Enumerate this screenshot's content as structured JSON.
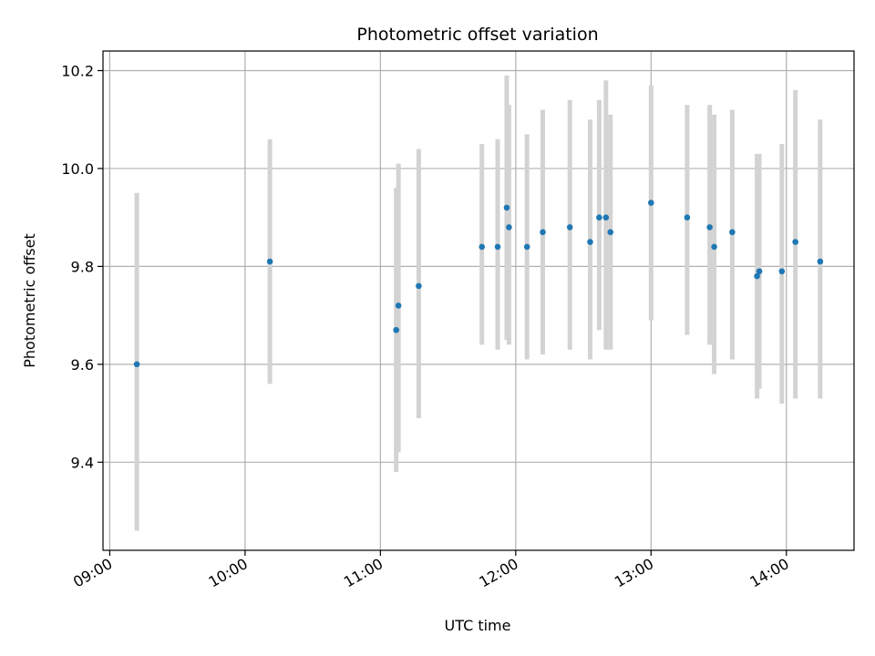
{
  "chart_data": {
    "type": "scatter",
    "title": "Photometric offset variation",
    "xlabel": "UTC time",
    "ylabel": "Photometric offset",
    "x_unit": "hours UTC",
    "xlim": [
      "08:57",
      "14:30"
    ],
    "ylim": [
      9.22,
      10.24
    ],
    "x_ticks": [
      "09:00",
      "10:00",
      "11:00",
      "12:00",
      "13:00",
      "14:00"
    ],
    "y_ticks": [
      9.4,
      9.6,
      9.8,
      10.0,
      10.2
    ],
    "y_tick_labels": [
      "9.4",
      "9.6",
      "9.8",
      "10.0",
      "10.2"
    ],
    "grid": true,
    "point_color": "#1f77b4",
    "errorbar_color": "#d3d3d3",
    "points": [
      {
        "x": "09:12",
        "y": 9.6,
        "y_low": 9.26,
        "y_high": 9.95
      },
      {
        "x": "10:11",
        "y": 9.81,
        "y_low": 9.56,
        "y_high": 10.06
      },
      {
        "x": "11:07",
        "y": 9.67,
        "y_low": 9.38,
        "y_high": 9.96
      },
      {
        "x": "11:08",
        "y": 9.72,
        "y_low": 9.42,
        "y_high": 10.01
      },
      {
        "x": "11:17",
        "y": 9.76,
        "y_low": 9.49,
        "y_high": 10.04
      },
      {
        "x": "11:45",
        "y": 9.84,
        "y_low": 9.64,
        "y_high": 10.05
      },
      {
        "x": "11:52",
        "y": 9.84,
        "y_low": 9.63,
        "y_high": 10.06
      },
      {
        "x": "11:56",
        "y": 9.92,
        "y_low": 9.65,
        "y_high": 10.19
      },
      {
        "x": "11:57",
        "y": 9.88,
        "y_low": 9.64,
        "y_high": 10.13
      },
      {
        "x": "12:05",
        "y": 9.84,
        "y_low": 9.61,
        "y_high": 10.07
      },
      {
        "x": "12:12",
        "y": 9.87,
        "y_low": 9.62,
        "y_high": 10.12
      },
      {
        "x": "12:24",
        "y": 9.88,
        "y_low": 9.63,
        "y_high": 10.14
      },
      {
        "x": "12:33",
        "y": 9.85,
        "y_low": 9.61,
        "y_high": 10.1
      },
      {
        "x": "12:37",
        "y": 9.9,
        "y_low": 9.67,
        "y_high": 10.14
      },
      {
        "x": "12:40",
        "y": 9.9,
        "y_low": 9.63,
        "y_high": 10.18
      },
      {
        "x": "12:42",
        "y": 9.87,
        "y_low": 9.63,
        "y_high": 10.11
      },
      {
        "x": "13:00",
        "y": 9.93,
        "y_low": 9.69,
        "y_high": 10.17
      },
      {
        "x": "13:16",
        "y": 9.9,
        "y_low": 9.66,
        "y_high": 10.13
      },
      {
        "x": "13:26",
        "y": 9.88,
        "y_low": 9.64,
        "y_high": 10.13
      },
      {
        "x": "13:28",
        "y": 9.84,
        "y_low": 9.58,
        "y_high": 10.11
      },
      {
        "x": "13:36",
        "y": 9.87,
        "y_low": 9.61,
        "y_high": 10.12
      },
      {
        "x": "13:47",
        "y": 9.78,
        "y_low": 9.53,
        "y_high": 10.03
      },
      {
        "x": "13:48",
        "y": 9.79,
        "y_low": 9.55,
        "y_high": 10.03
      },
      {
        "x": "13:58",
        "y": 9.79,
        "y_low": 9.52,
        "y_high": 10.05
      },
      {
        "x": "14:04",
        "y": 9.85,
        "y_low": 9.53,
        "y_high": 10.16
      },
      {
        "x": "14:15",
        "y": 9.81,
        "y_low": 9.53,
        "y_high": 10.1
      }
    ]
  }
}
